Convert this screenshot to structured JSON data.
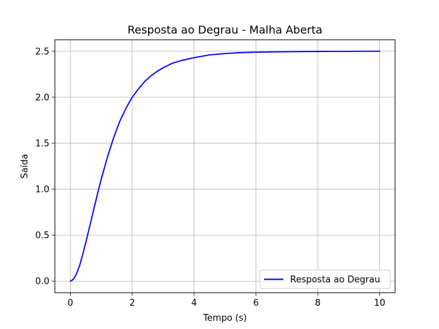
{
  "chart_data": {
    "type": "line",
    "title": "Resposta ao Degrau - Malha Aberta",
    "xlabel": "Tempo (s)",
    "ylabel": "Saída",
    "xlim": [
      -0.5,
      10.5
    ],
    "ylim": [
      -0.125,
      2.625
    ],
    "x_ticks": [
      0,
      2,
      4,
      6,
      8,
      10
    ],
    "x_tick_labels": [
      "0",
      "2",
      "4",
      "6",
      "8",
      "10"
    ],
    "y_ticks": [
      0.0,
      0.5,
      1.0,
      1.5,
      2.0,
      2.5
    ],
    "y_tick_labels": [
      "0.0",
      "0.5",
      "1.0",
      "1.5",
      "2.0",
      "2.5"
    ],
    "grid": true,
    "legend_position": "bottom-right",
    "series": [
      {
        "name": "Resposta ao Degrau",
        "color": "#0000ff",
        "x": [
          0,
          0.1,
          0.2,
          0.3,
          0.4,
          0.5,
          0.6,
          0.7,
          0.8,
          0.9,
          1.0,
          1.2,
          1.4,
          1.6,
          1.8,
          2.0,
          2.2,
          2.4,
          2.6,
          2.8,
          3.0,
          3.3,
          3.6,
          4.0,
          4.5,
          5.0,
          5.5,
          6.0,
          6.5,
          7.0,
          7.5,
          8.0,
          8.5,
          9.0,
          9.5,
          10.0
        ],
        "y": [
          0.0,
          0.02,
          0.08,
          0.17,
          0.29,
          0.42,
          0.56,
          0.7,
          0.84,
          0.98,
          1.11,
          1.35,
          1.56,
          1.74,
          1.88,
          2.0,
          2.09,
          2.17,
          2.23,
          2.28,
          2.32,
          2.37,
          2.4,
          2.43,
          2.46,
          2.475,
          2.485,
          2.49,
          2.493,
          2.495,
          2.497,
          2.498,
          2.499,
          2.499,
          2.5,
          2.5
        ]
      }
    ]
  }
}
